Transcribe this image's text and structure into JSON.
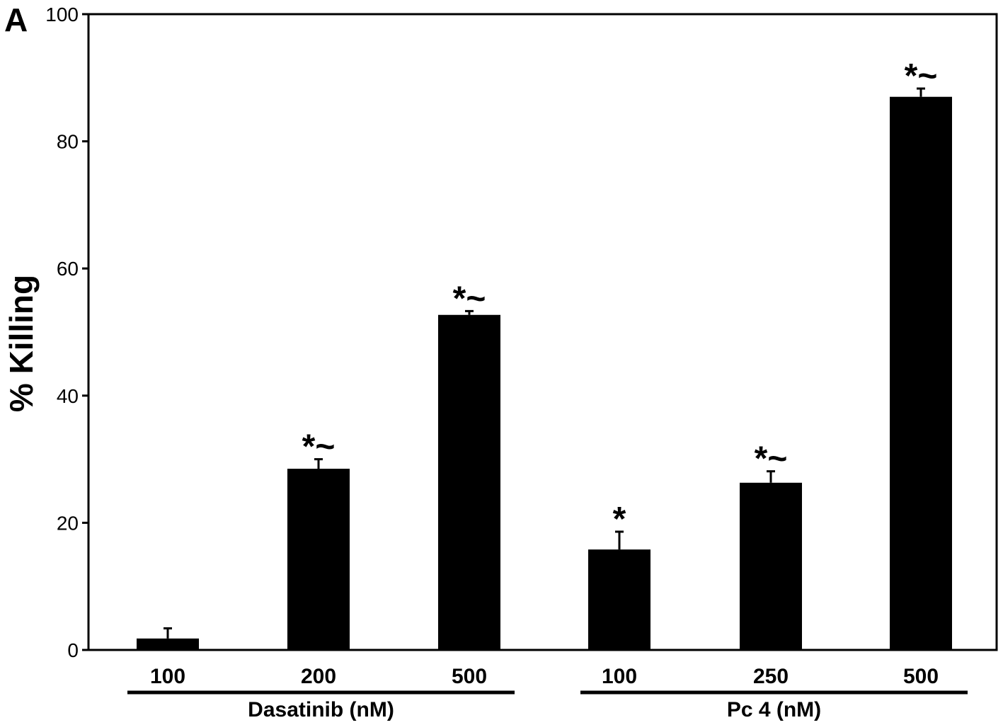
{
  "panel_label": "A",
  "chart_data": {
    "type": "bar",
    "ylabel": "% Killing",
    "ylim": [
      0,
      100
    ],
    "yticks": [
      0,
      20,
      40,
      60,
      80,
      100
    ],
    "groups": [
      {
        "label": "Dasatinib (nM)",
        "categories": [
          "100",
          "200",
          "500"
        ]
      },
      {
        "label": "Pc 4 (nM)",
        "categories": [
          "100",
          "250",
          "500"
        ]
      }
    ],
    "categories": [
      "100",
      "200",
      "500",
      "100",
      "250",
      "500"
    ],
    "values": [
      1.8,
      28.5,
      52.7,
      15.8,
      26.3,
      87.0
    ],
    "errors": [
      1.6,
      1.5,
      0.6,
      2.8,
      1.8,
      1.3
    ],
    "annotations": [
      "",
      "*~",
      "*~",
      "*",
      "*~",
      "*~"
    ],
    "colors": {
      "bar": "#000000",
      "axis": "#000000"
    }
  }
}
